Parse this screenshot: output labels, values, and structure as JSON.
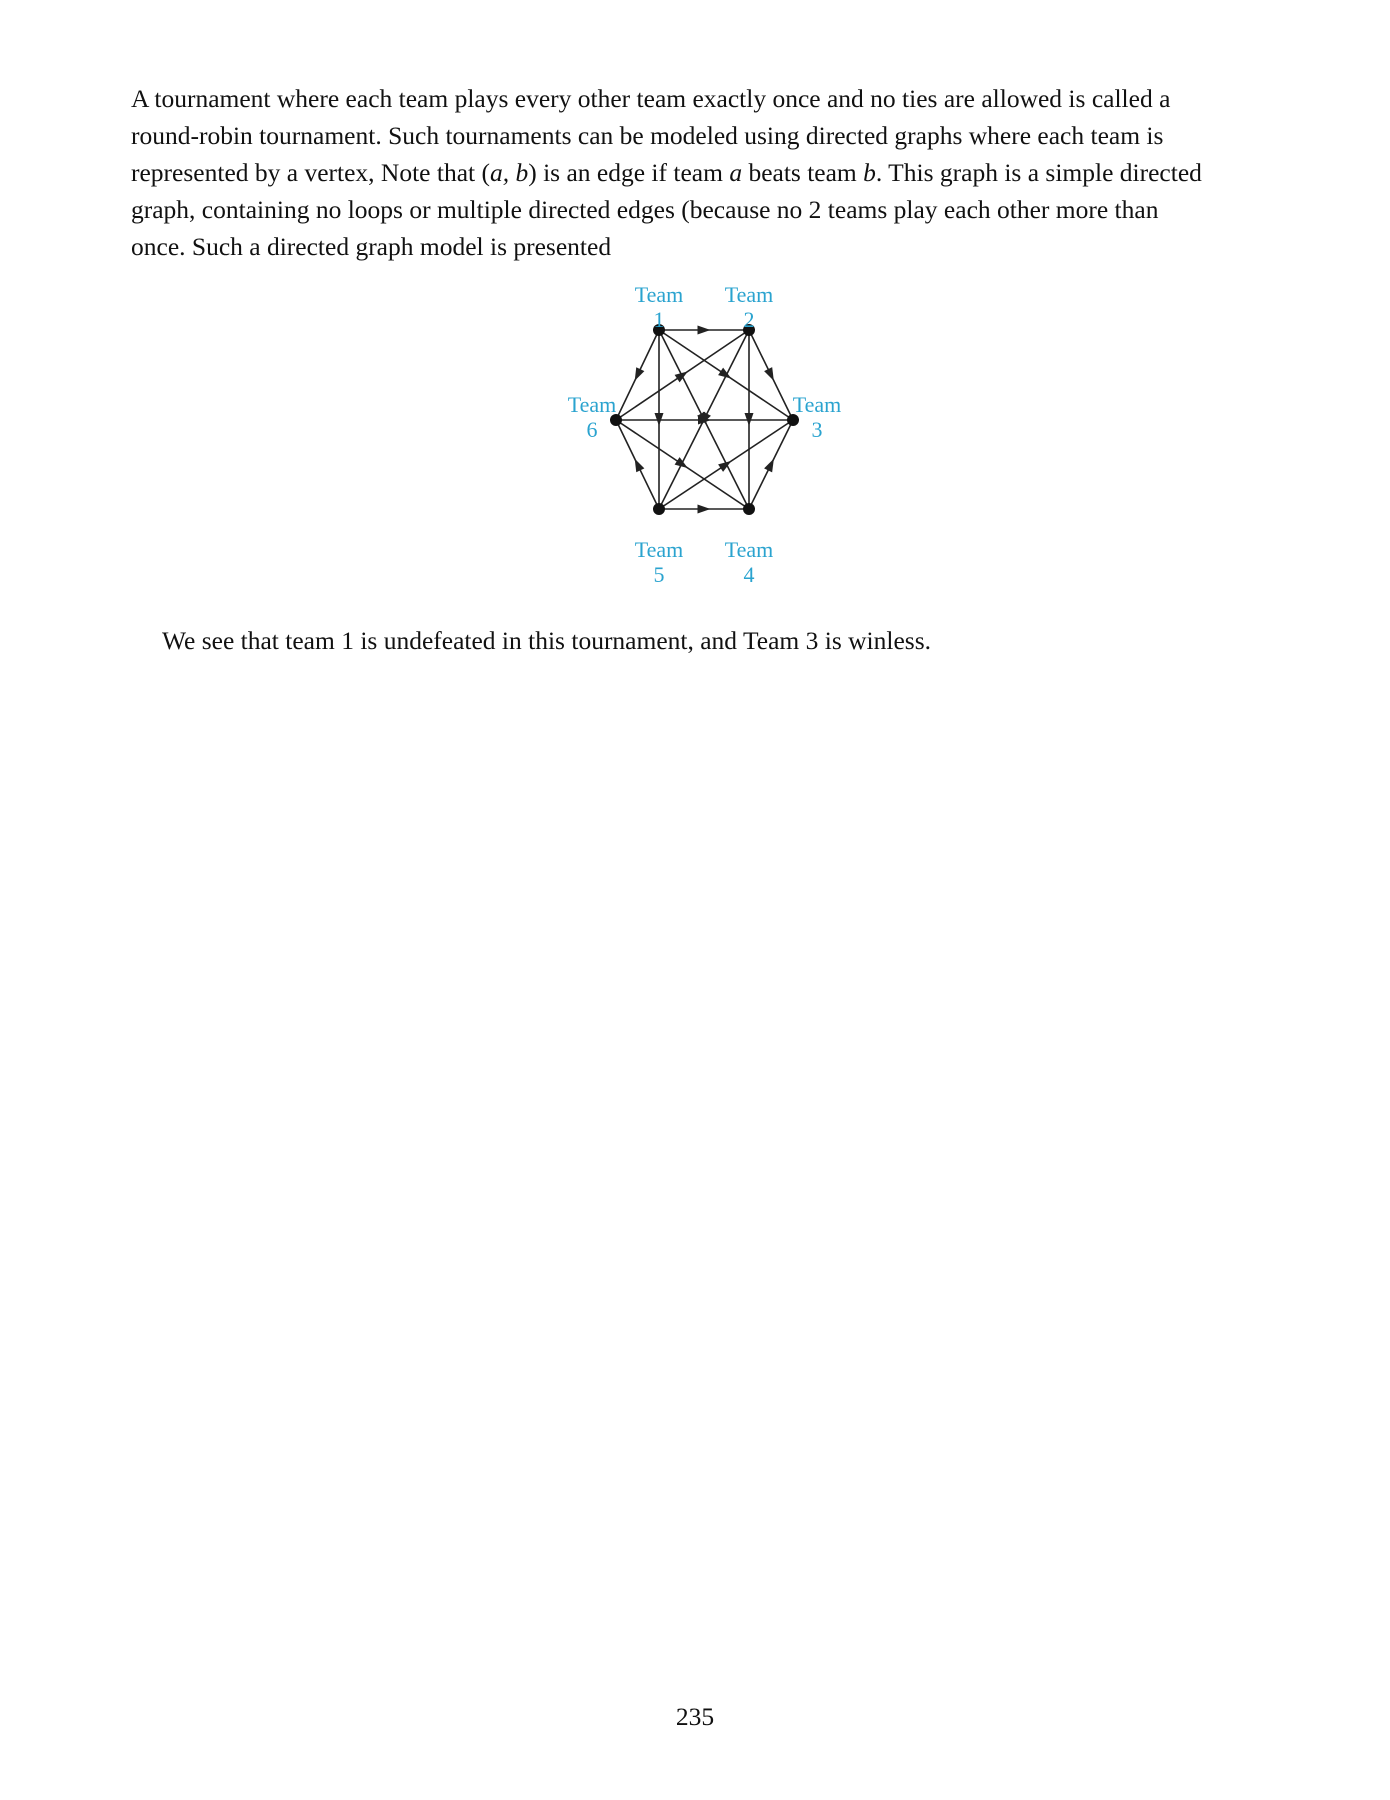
{
  "paragraph1": {
    "line1": "A tournament where each team plays every other team exactly once and no ties are allowed is called a",
    "line2": "round-robin tournament. Such tournaments can be modeled using directed graphs where each team is",
    "line3_a": "represented by a vertex, Note that (",
    "line3_pair": "a, b",
    "line3_b": ") is an edge if team ",
    "line3_var_a": "a",
    "line3_c": " beats team ",
    "line3_var_b": "b",
    "line3_d": ". This graph is a simple directed",
    "line4": "graph, containing no loops or multiple directed edges (because no 2 teams play each other more than",
    "line5": "once. Such a directed graph model is presented"
  },
  "figure": {
    "label_color": "#2aa3cf",
    "edge_color": "#222222",
    "vertices": [
      {
        "id": 1,
        "label_word": "Team",
        "label_num": "1"
      },
      {
        "id": 2,
        "label_word": "Team",
        "label_num": "2"
      },
      {
        "id": 3,
        "label_word": "Team",
        "label_num": "3"
      },
      {
        "id": 4,
        "label_word": "Team",
        "label_num": "4"
      },
      {
        "id": 5,
        "label_word": "Team",
        "label_num": "5"
      },
      {
        "id": 6,
        "label_word": "Team",
        "label_num": "6"
      }
    ],
    "edges": [
      {
        "from": 1,
        "to": 2
      },
      {
        "from": 1,
        "to": 3
      },
      {
        "from": 1,
        "to": 4
      },
      {
        "from": 1,
        "to": 5
      },
      {
        "from": 1,
        "to": 6
      },
      {
        "from": 2,
        "to": 3
      },
      {
        "from": 2,
        "to": 4
      },
      {
        "from": 2,
        "to": 5
      },
      {
        "from": 6,
        "to": 2
      },
      {
        "from": 6,
        "to": 3
      },
      {
        "from": 6,
        "to": 4
      },
      {
        "from": 4,
        "to": 3
      },
      {
        "from": 5,
        "to": 3
      },
      {
        "from": 5,
        "to": 4
      },
      {
        "from": 5,
        "to": 6
      }
    ]
  },
  "paragraph2": "We see that team 1 is undefeated in this tournament, and Team 3 is winless.",
  "page_number": "235"
}
